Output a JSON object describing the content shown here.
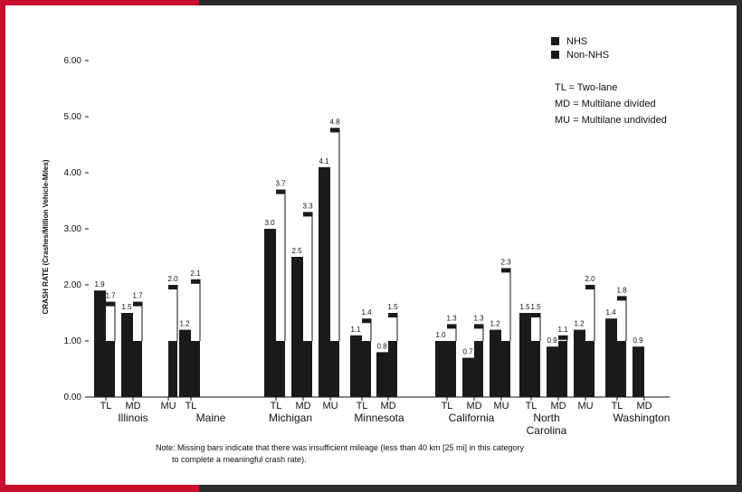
{
  "chart_data": {
    "type": "bar",
    "title": "",
    "ylabel": "CRASH RATE (Crashes/Million Vehicle-Miles)",
    "ylim": [
      0,
      6
    ],
    "yticks": [
      "0.00",
      "1.00",
      "2.00",
      "3.00",
      "4.00",
      "5.00",
      "6.00"
    ],
    "legend": {
      "placement": "top-right",
      "entries": [
        "NHS",
        "Non-NHS"
      ]
    },
    "abbreviations": [
      "TL = Two-lane",
      "MD = Multilane divided",
      "MU = Multilane undivided"
    ],
    "series_colors": {
      "NHS": "#1a1a1a",
      "Non-NHS": "#1a1a1a"
    },
    "groups": [
      {
        "state": "Illinois",
        "state_label": "Illinois",
        "bars": [
          {
            "type": "TL",
            "nhs": 1.9,
            "non_nhs": 1.7,
            "nhs_label": "1.9",
            "non_nhs_label": "1.7"
          },
          {
            "type": "MD",
            "nhs": 1.5,
            "non_nhs": 1.7,
            "nhs_label": "1.5",
            "non_nhs_label": "1.7"
          },
          {
            "type": "MU",
            "nhs": null,
            "non_nhs": 2.0,
            "nhs_label": "",
            "non_nhs_label": "2.0"
          }
        ]
      },
      {
        "state": "Maine",
        "state_label": "Maine",
        "bars": [
          {
            "type": "TL",
            "nhs": 1.2,
            "non_nhs": 2.1,
            "nhs_label": "1.2",
            "non_nhs_label": "2.1"
          }
        ]
      },
      {
        "state": "Michigan",
        "state_label": "Michigan",
        "bars": [
          {
            "type": "TL",
            "nhs": 3.0,
            "non_nhs": 3.7,
            "nhs_label": "3.0",
            "non_nhs_label": "3.7"
          },
          {
            "type": "MD",
            "nhs": 2.5,
            "non_nhs": 3.3,
            "nhs_label": "2.5",
            "non_nhs_label": "3.3"
          },
          {
            "type": "MU",
            "nhs": 4.1,
            "non_nhs": 4.8,
            "nhs_label": "4.1",
            "non_nhs_label": "4.8"
          }
        ]
      },
      {
        "state": "Minnesota",
        "state_label": "Minnesota",
        "bars": [
          {
            "type": "TL",
            "nhs": 1.1,
            "non_nhs": 1.4,
            "nhs_label": "1.1",
            "non_nhs_label": "1.4"
          },
          {
            "type": "MD",
            "nhs": 0.8,
            "non_nhs": 1.5,
            "nhs_label": "0.8",
            "non_nhs_label": "1.5"
          }
        ]
      },
      {
        "state": "California",
        "state_label": "California",
        "bars": [
          {
            "type": "TL",
            "nhs": 1.0,
            "non_nhs": 1.3,
            "nhs_label": "1.0",
            "non_nhs_label": "1.3"
          },
          {
            "type": "MD",
            "nhs": 0.7,
            "non_nhs": 1.3,
            "nhs_label": "0.7",
            "non_nhs_label": "1.3"
          },
          {
            "type": "MU",
            "nhs": 1.2,
            "non_nhs": 2.3,
            "nhs_label": "1.2",
            "non_nhs_label": "2.3"
          }
        ]
      },
      {
        "state": "North Carolina",
        "state_label": "North Carolina",
        "bars": [
          {
            "type": "TL",
            "nhs": 1.5,
            "non_nhs": 1.5,
            "nhs_label": "1.5",
            "non_nhs_label": "1.5"
          },
          {
            "type": "MD",
            "nhs": 0.9,
            "non_nhs": 1.1,
            "nhs_label": "0.9",
            "non_nhs_label": "1.1"
          },
          {
            "type": "MU",
            "nhs": 1.2,
            "non_nhs": 2.0,
            "nhs_label": "1.2",
            "non_nhs_label": "2.0"
          }
        ]
      },
      {
        "state": "Washington",
        "state_label": "Washington",
        "bars": [
          {
            "type": "TL",
            "nhs": 1.4,
            "non_nhs": 1.8,
            "nhs_label": "1.4",
            "non_nhs_label": "1.8"
          },
          {
            "type": "MD",
            "nhs": 0.9,
            "non_nhs": null,
            "nhs_label": "0.9",
            "non_nhs_label": ""
          }
        ]
      }
    ]
  },
  "note": {
    "line1": "Note: Missing bars indicate that there was insufficient mileage (less than 40 km [25 mi] in this category",
    "line2": "to complete a meaningful crash rate)."
  }
}
